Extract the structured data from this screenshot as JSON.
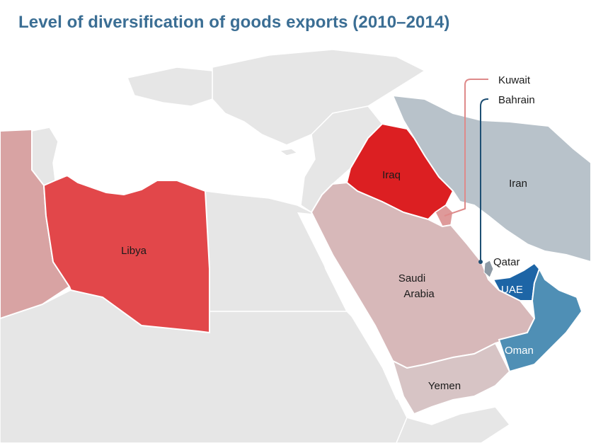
{
  "title": "Level of diversification of goods exports (2010–2014)",
  "colors": {
    "background_land": "#e6e6e6",
    "borders": "#ffffff",
    "title": "#3b6e94",
    "algeria": "#d8a3a3",
    "libya": "#e2474a",
    "iraq": "#dc1f22",
    "saudi_arabia": "#d7b8b9",
    "yemen": "#d7c4c5",
    "iran": "#b8c2ca",
    "kuwait": "#de9a9a",
    "bahrain": "#1e4f73",
    "qatar": "#8e9aa5",
    "uae": "#1d65a6",
    "oman": "#4f8fb5"
  },
  "countries": [
    {
      "id": "algeria",
      "label": ""
    },
    {
      "id": "libya",
      "label": "Libya"
    },
    {
      "id": "iraq",
      "label": "Iraq"
    },
    {
      "id": "iran",
      "label": "Iran"
    },
    {
      "id": "saudi_arabia",
      "label_line1": "Saudi",
      "label_line2": "Arabia"
    },
    {
      "id": "yemen",
      "label": "Yemen"
    },
    {
      "id": "qatar",
      "label": "Qatar"
    },
    {
      "id": "uae",
      "label": "UAE"
    },
    {
      "id": "oman",
      "label": "Oman"
    }
  ],
  "callouts": {
    "kuwait": {
      "label": "Kuwait",
      "color": "#de8a8a"
    },
    "bahrain": {
      "label": "Bahrain",
      "color": "#1e4f73"
    }
  }
}
